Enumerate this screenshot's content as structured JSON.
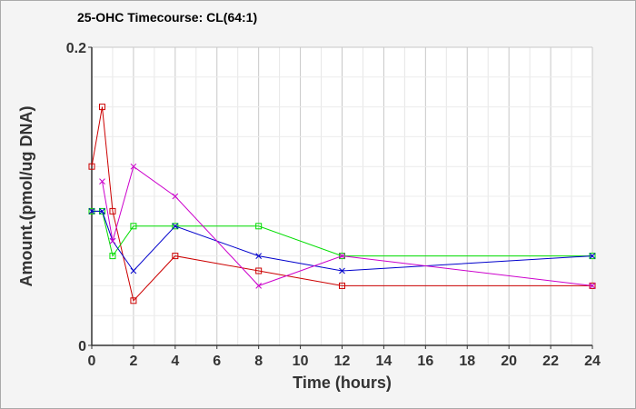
{
  "chart_data": {
    "type": "line",
    "title": "25-OHC Timecourse: CL(64:1)",
    "xlabel": "Time (hours)",
    "ylabel": "Amount.(pmol/ug DNA)",
    "xlim": [
      0,
      24
    ],
    "ylim": [
      0,
      0.2
    ],
    "x_ticks": [
      "0",
      "2",
      "4",
      "6",
      "8",
      "10",
      "12",
      "14",
      "16",
      "18",
      "20",
      "22",
      "24"
    ],
    "y_ticks": [
      "0",
      "0.2"
    ],
    "grid": true,
    "legend": "none",
    "series": [
      {
        "color": "#cc0000",
        "marker": "square",
        "x": [
          0,
          0.5,
          1,
          2,
          4,
          8,
          12,
          24
        ],
        "y": [
          0.12,
          0.16,
          0.09,
          0.03,
          0.06,
          0.05,
          0.04,
          0.04
        ]
      },
      {
        "color": "#00dd00",
        "marker": "square",
        "x": [
          0,
          0.5,
          1,
          2,
          4,
          8,
          12,
          24
        ],
        "y": [
          0.09,
          0.09,
          0.06,
          0.08,
          0.08,
          0.08,
          0.06,
          0.06
        ]
      },
      {
        "color": "#0000cc",
        "marker": "x",
        "x": [
          0,
          0.5,
          1,
          2,
          4,
          8,
          12,
          24
        ],
        "y": [
          0.09,
          0.09,
          0.07,
          0.05,
          0.08,
          0.06,
          0.05,
          0.06
        ]
      },
      {
        "color": "#cc00cc",
        "marker": "x",
        "x": [
          0.5,
          1,
          2,
          4,
          8,
          12,
          24
        ],
        "y": [
          0.11,
          0.07,
          0.12,
          0.1,
          0.04,
          0.06,
          0.04
        ]
      }
    ]
  }
}
